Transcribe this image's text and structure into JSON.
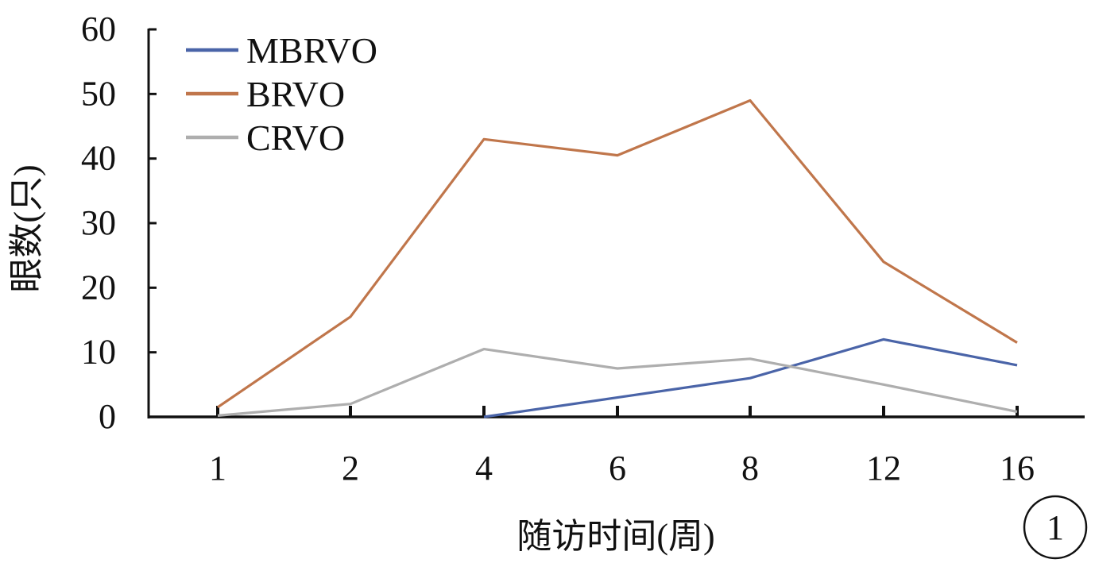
{
  "chart_data": {
    "type": "line",
    "categories": [
      "1",
      "2",
      "4",
      "6",
      "8",
      "12",
      "16"
    ],
    "series": [
      {
        "name": "MBRVO",
        "color": "#4a64a8",
        "values": [
          null,
          null,
          0,
          3,
          6,
          12,
          8
        ]
      },
      {
        "name": "BRVO",
        "color": "#c0764b",
        "values": [
          1.5,
          15.5,
          43,
          40.5,
          49,
          24,
          11.5
        ]
      },
      {
        "name": "CRVO",
        "color": "#aeaeae",
        "values": [
          0.2,
          2,
          10.5,
          7.5,
          9,
          5,
          0.8
        ]
      }
    ],
    "yticks": [
      "0",
      "10",
      "20",
      "30",
      "40",
      "50",
      "60"
    ],
    "ylim": [
      0,
      60
    ],
    "xlabel": "随访时间(周)",
    "ylabel": "眼数(只)",
    "legend": "top-left",
    "grid": false
  },
  "figure_label": "1"
}
